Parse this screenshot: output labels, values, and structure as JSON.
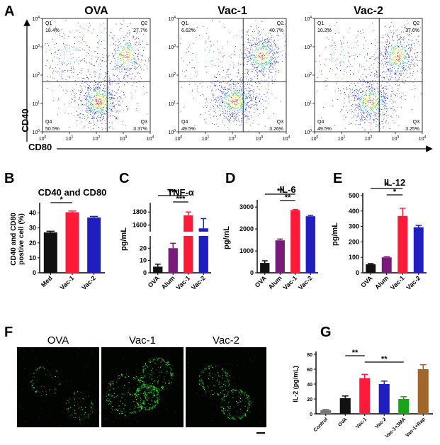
{
  "panel_labels": {
    "A": "A",
    "B": "B",
    "C": "C",
    "D": "D",
    "E": "E",
    "F": "F",
    "G": "G"
  },
  "colors": {
    "black": "#111111",
    "red": "#ff1a3a",
    "blue": "#1f1fbf",
    "purple": "#7a1a7a",
    "green": "#1aa21a",
    "brown": "#a0662a",
    "gray": "#777777",
    "dot_blue": "#1f2fd0",
    "dot_cyan": "#22b8c8",
    "dot_green": "#39c23a",
    "dot_yellow": "#e6d81a",
    "dot_red": "#e2341d",
    "cell_green": "#3cff3c"
  },
  "chart_data": [
    {
      "panel": "A",
      "type": "scatter",
      "xlabel": "CD80",
      "ylabel": "CD40",
      "log_axes": true,
      "x_ticks": [
        "10^0",
        "10^1",
        "10^2",
        "10^3",
        "10^4"
      ],
      "y_ticks": [
        "10^0",
        "10^1",
        "10^2",
        "10^3",
        "10^4"
      ],
      "plots": [
        {
          "title": "OVA",
          "quadrants": {
            "Q1": {
              "label": "Q1",
              "value": "18.4%"
            },
            "Q2": {
              "label": "Q2",
              "value": "27.7%"
            },
            "Q3": {
              "label": "Q3",
              "value": "3.37%"
            },
            "Q4": {
              "label": "Q4",
              "value": "50.5%"
            }
          }
        },
        {
          "title": "Vac-1",
          "quadrants": {
            "Q1": {
              "label": "Q1",
              "value": "6.62%"
            },
            "Q2": {
              "label": "Q2",
              "value": "40.7%"
            },
            "Q3": {
              "label": "Q3",
              "value": "3.26%"
            },
            "Q4": {
              "label": "Q4",
              "value": "49.5%"
            }
          }
        },
        {
          "title": "Vac-2",
          "quadrants": {
            "Q1": {
              "label": "Q1",
              "value": "10.2%"
            },
            "Q2": {
              "label": "Q2",
              "value": "37.0%"
            },
            "Q3": {
              "label": "Q3",
              "value": "3.25%"
            },
            "Q4": {
              "label": "Q4",
              "value": "49.5%"
            }
          }
        }
      ]
    },
    {
      "panel": "B",
      "type": "bar",
      "title": "CD40 and CD80",
      "ylabel": "CD40 and CD80 postive cell (%)",
      "ylabel_lines": [
        "CD40 and CD80",
        "postive cell (%)"
      ],
      "categories": [
        "Med",
        "Vac-1",
        "Vac-2"
      ],
      "values": [
        27,
        40.5,
        37
      ],
      "errors": [
        0.8,
        0.8,
        0.7
      ],
      "colors": [
        "#111111",
        "#ff1a3a",
        "#1f1fbf"
      ],
      "ylim": [
        0,
        45
      ],
      "yticks": [
        0,
        10,
        20,
        30,
        40
      ],
      "significance": [
        {
          "from": 0,
          "to": 1,
          "label": "*"
        }
      ]
    },
    {
      "panel": "C",
      "type": "bar",
      "title": "TNF-α",
      "ylabel": "pg/mL",
      "categories": [
        "OVA",
        "Alum",
        "Vac-1",
        "Vac-2"
      ],
      "values": [
        5,
        20,
        1750,
        1550
      ],
      "errors": [
        2,
        4,
        50,
        150
      ],
      "colors": [
        "#111111",
        "#7a1a7a",
        "#ff1a3a",
        "#1f1fbf"
      ],
      "axis_break": {
        "lower": [
          0,
          30
        ],
        "upper": [
          1500,
          1900
        ]
      },
      "yticks_lower": [
        0,
        10,
        20
      ],
      "yticks_upper": [
        1600,
        1800
      ],
      "significance": [
        {
          "from": 0,
          "to": 2,
          "label": "***"
        },
        {
          "from": 1,
          "to": 2,
          "label": "***"
        }
      ]
    },
    {
      "panel": "D",
      "type": "bar",
      "title": "IL-6",
      "ylabel": "pg/mL",
      "categories": [
        "OVA",
        "Alum",
        "Vac-1",
        "Vac-2"
      ],
      "values": [
        450,
        1480,
        2860,
        2580
      ],
      "errors": [
        100,
        60,
        30,
        40
      ],
      "colors": [
        "#111111",
        "#7a1a7a",
        "#ff1a3a",
        "#1f1fbf"
      ],
      "ylim": [
        0,
        3200
      ],
      "yticks": [
        0,
        1000,
        2000,
        3000
      ],
      "significance": [
        {
          "from": 0,
          "to": 2,
          "label": "**"
        },
        {
          "from": 1,
          "to": 2,
          "label": "**"
        }
      ]
    },
    {
      "panel": "E",
      "type": "bar",
      "title": "IL-12",
      "ylabel": "pg/mL",
      "categories": [
        "OVA",
        "Alum",
        "Vac-1",
        "Vac-2"
      ],
      "values": [
        55,
        100,
        368,
        295
      ],
      "errors": [
        5,
        4,
        50,
        12
      ],
      "colors": [
        "#111111",
        "#7a1a7a",
        "#ff1a3a",
        "#1f1fbf"
      ],
      "ylim": [
        0,
        500
      ],
      "yticks": [
        0,
        100,
        200,
        300,
        400,
        500
      ],
      "significance": [
        {
          "from": 0,
          "to": 2,
          "label": "*"
        },
        {
          "from": 1,
          "to": 2,
          "label": "*"
        }
      ]
    },
    {
      "panel": "G",
      "type": "bar",
      "ylabel": "IL-2 (pg/mL)",
      "categories": [
        "Control",
        "OVA",
        "Vac-1",
        "Vac-2",
        "Vac-1+3MA",
        "Vac-1+Rap"
      ],
      "values": [
        5,
        21,
        48,
        40,
        20,
        60
      ],
      "errors": [
        1,
        3,
        5,
        4,
        3,
        6
      ],
      "colors": [
        "#777777",
        "#111111",
        "#ff1a3a",
        "#1f1fbf",
        "#1aa21a",
        "#a0662a"
      ],
      "ylim": [
        0,
        80
      ],
      "yticks": [
        0,
        20,
        40,
        60,
        80
      ],
      "significance": [
        {
          "from": 1,
          "to": 2,
          "label": "**"
        },
        {
          "from": 2,
          "to": 4,
          "label": "**"
        }
      ]
    }
  ],
  "micrographs": {
    "titles": [
      "OVA",
      "Vac-1",
      "Vac-2"
    ]
  }
}
